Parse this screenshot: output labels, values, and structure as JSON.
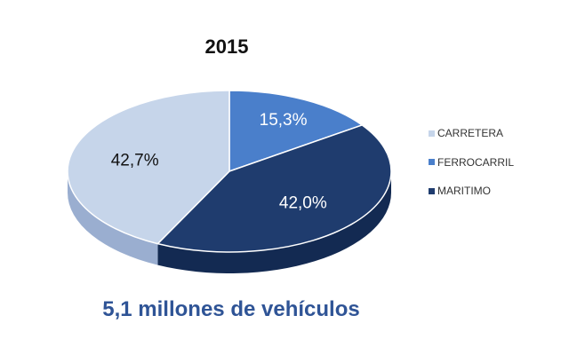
{
  "chart_data": {
    "type": "pie",
    "title": "2015",
    "subtitle": "5,1 millones de vehículos",
    "categories": [
      "CARRETERA",
      "FERROCARRIL",
      "MARITIMO"
    ],
    "values": [
      42.7,
      15.3,
      42.0
    ],
    "value_labels": [
      "42,7%",
      "15,3%",
      "42,0%"
    ],
    "colors": [
      "#c6d5ea",
      "#4a7fcb",
      "#1f3c6e"
    ],
    "side_colors": [
      "#9aaed0",
      "#2f5ea8",
      "#132a52"
    ],
    "label_colors": [
      "#111111",
      "#ffffff",
      "#ffffff"
    ],
    "legend_position": "right",
    "style": "3d"
  }
}
